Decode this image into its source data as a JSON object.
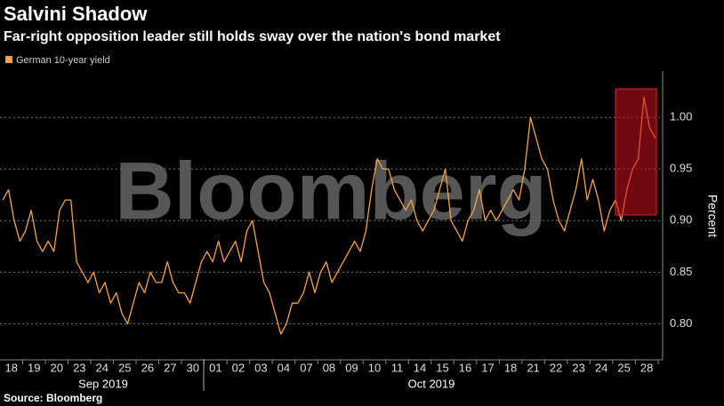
{
  "chart_data": {
    "type": "line",
    "title": "Salvini Shadow",
    "subtitle": "Far-right opposition leader still holds sway over the nation's bond market",
    "watermark": "Bloomberg",
    "source": "Source: Bloomberg",
    "y_label": "Percent",
    "groups": [
      "Sep 2019",
      "Oct 2019"
    ],
    "xlim": [
      0,
      29.2
    ],
    "xticks": [
      {
        "value": 0.5,
        "label": "18"
      },
      {
        "value": 1.5,
        "label": "19"
      },
      {
        "value": 2.5,
        "label": "20"
      },
      {
        "value": 3.5,
        "label": "23"
      },
      {
        "value": 4.5,
        "label": "24"
      },
      {
        "value": 5.5,
        "label": "25"
      },
      {
        "value": 6.5,
        "label": "26"
      },
      {
        "value": 7.5,
        "label": "27"
      },
      {
        "value": 8.5,
        "label": "30"
      },
      {
        "value": 9.5,
        "label": "01"
      },
      {
        "value": 10.5,
        "label": "02"
      },
      {
        "value": 11.5,
        "label": "03"
      },
      {
        "value": 12.5,
        "label": "04"
      },
      {
        "value": 13.5,
        "label": "07"
      },
      {
        "value": 14.5,
        "label": "08"
      },
      {
        "value": 15.5,
        "label": "09"
      },
      {
        "value": 16.5,
        "label": "10"
      },
      {
        "value": 17.5,
        "label": "11"
      },
      {
        "value": 18.5,
        "label": "14"
      },
      {
        "value": 19.5,
        "label": "15"
      },
      {
        "value": 20.5,
        "label": "16"
      },
      {
        "value": 21.5,
        "label": "17"
      },
      {
        "value": 22.5,
        "label": "18"
      },
      {
        "value": 23.5,
        "label": "21"
      },
      {
        "value": 24.5,
        "label": "22"
      },
      {
        "value": 25.5,
        "label": "23"
      },
      {
        "value": 26.5,
        "label": "24"
      },
      {
        "value": 27.5,
        "label": "25"
      },
      {
        "value": 28.5,
        "label": "28"
      }
    ],
    "ylim": [
      0.765,
      1.045
    ],
    "yticks": [
      {
        "value": 0.8,
        "label": "0.80"
      },
      {
        "value": 0.85,
        "label": "0.85"
      },
      {
        "value": 0.9,
        "label": "0.90"
      },
      {
        "value": 0.95,
        "label": "0.95"
      },
      {
        "value": 1.0,
        "label": "1.00"
      }
    ],
    "grid": true,
    "x": [
      0.125,
      0.375,
      0.625,
      0.875,
      1.125,
      1.375,
      1.625,
      1.875,
      2.125,
      2.375,
      2.625,
      2.875,
      3.125,
      3.375,
      3.625,
      3.875,
      4.125,
      4.375,
      4.625,
      4.875,
      5.125,
      5.375,
      5.625,
      5.875,
      6.125,
      6.375,
      6.625,
      6.875,
      7.125,
      7.375,
      7.625,
      7.875,
      8.125,
      8.375,
      8.625,
      8.875,
      9.125,
      9.375,
      9.625,
      9.875,
      10.125,
      10.375,
      10.625,
      10.875,
      11.125,
      11.375,
      11.625,
      11.875,
      12.125,
      12.375,
      12.625,
      12.875,
      13.125,
      13.375,
      13.625,
      13.875,
      14.125,
      14.375,
      14.625,
      14.875,
      15.125,
      15.375,
      15.625,
      15.875,
      16.125,
      16.375,
      16.625,
      16.875,
      17.125,
      17.375,
      17.625,
      17.875,
      18.125,
      18.375,
      18.625,
      18.875,
      19.125,
      19.375,
      19.625,
      19.875,
      20.125,
      20.375,
      20.625,
      20.875,
      21.125,
      21.375,
      21.625,
      21.875,
      22.125,
      22.375,
      22.625,
      22.875,
      23.125,
      23.375,
      23.625,
      23.875,
      24.125,
      24.375,
      24.625,
      24.875,
      25.125,
      25.375,
      25.625,
      25.875,
      26.125,
      26.375,
      26.625,
      26.875,
      27.125,
      27.375,
      27.625,
      27.875,
      28.125,
      28.375,
      28.625,
      28.875
    ],
    "series": [
      {
        "name": "German 10-year yield",
        "color": "#f5a340",
        "values": [
          0.92,
          0.93,
          0.9,
          0.88,
          0.89,
          0.91,
          0.88,
          0.87,
          0.88,
          0.87,
          0.91,
          0.92,
          0.92,
          0.86,
          0.85,
          0.84,
          0.85,
          0.83,
          0.84,
          0.82,
          0.83,
          0.81,
          0.8,
          0.82,
          0.84,
          0.83,
          0.85,
          0.84,
          0.84,
          0.86,
          0.84,
          0.83,
          0.83,
          0.82,
          0.84,
          0.86,
          0.87,
          0.86,
          0.88,
          0.86,
          0.87,
          0.88,
          0.86,
          0.89,
          0.9,
          0.87,
          0.84,
          0.83,
          0.81,
          0.79,
          0.8,
          0.82,
          0.82,
          0.83,
          0.85,
          0.83,
          0.85,
          0.86,
          0.84,
          0.85,
          0.86,
          0.87,
          0.88,
          0.87,
          0.89,
          0.93,
          0.96,
          0.95,
          0.95,
          0.93,
          0.92,
          0.91,
          0.92,
          0.9,
          0.89,
          0.9,
          0.91,
          0.93,
          0.95,
          0.9,
          0.89,
          0.88,
          0.9,
          0.91,
          0.93,
          0.9,
          0.91,
          0.9,
          0.91,
          0.92,
          0.93,
          0.92,
          0.95,
          1.0,
          0.98,
          0.96,
          0.95,
          0.92,
          0.9,
          0.89,
          0.91,
          0.93,
          0.96,
          0.92,
          0.94,
          0.92,
          0.89,
          0.91,
          0.92,
          0.9,
          0.93,
          0.95,
          0.96,
          1.02,
          0.99,
          0.98
        ]
      }
    ]
  }
}
